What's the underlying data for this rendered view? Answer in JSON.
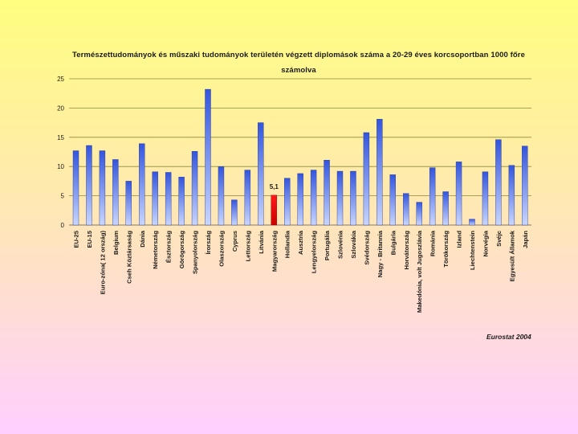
{
  "chart_data": {
    "type": "bar",
    "title_line1": "Természettudományok és műszaki tudományok területén végzett diplomások száma a 20-29 éves korcsoportban 1000 főre",
    "title_line2": "számolva",
    "source": "Eurostat 2004",
    "ylim": [
      0,
      25
    ],
    "yticks": [
      "0",
      "5",
      "10",
      "15",
      "20",
      "25"
    ],
    "grid": true,
    "highlight_label": "5,1",
    "highlight_index": 15,
    "colors": {
      "bar_top": "#3355dd",
      "bar_bottom": "#c8d6ff",
      "highlight_top": "#ff1a1a",
      "highlight_bottom": "#cc0000",
      "grid": "#8a8a3a"
    },
    "categories": [
      "EU-25",
      "EU-15",
      "Euro-zóna( 12 ország)",
      "Belgium",
      "Cseh Köztársaság",
      "Dánia",
      "Németország",
      "Észtország",
      "Görögország",
      "Spanyolország",
      "Írország",
      "Olaszország",
      "Cyprus",
      "Lettország",
      "Litvánia",
      "Magyarország",
      "Hollandia",
      "Ausztria",
      "Lengyelország",
      "Portugália",
      "Szlovénia",
      "Szlovákia",
      "Svédország",
      "Nagy - Britannia",
      "Bulgária",
      "Horvátország",
      "Makedónia, volt Jugoszlávia",
      "Románia",
      "Törökország",
      "Izland",
      "Liechtenstein",
      "Norvégia",
      "Svéjc",
      "Egyesült Államok",
      "Japán"
    ],
    "values": [
      12.7,
      13.6,
      12.7,
      11.2,
      7.5,
      13.9,
      9.1,
      9.0,
      8.2,
      12.6,
      23.2,
      10.0,
      4.3,
      9.4,
      17.5,
      5.1,
      8.0,
      8.8,
      9.4,
      11.1,
      9.2,
      9.2,
      15.8,
      18.1,
      8.6,
      5.4,
      3.9,
      9.8,
      5.7,
      10.8,
      1.0,
      9.1,
      14.6,
      10.2,
      13.5
    ]
  }
}
